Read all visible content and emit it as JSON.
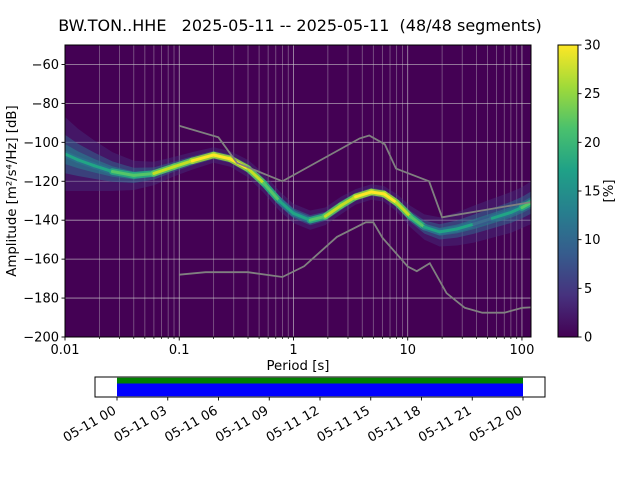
{
  "chart_data": {
    "type": "heatmap",
    "title": "BW.TON..HHE   2025-05-11 -- 2025-05-11  (48/48 segments)",
    "station_id": "BW.TON..HHE",
    "date_range": "2025-05-11 -- 2025-05-11",
    "segments": "48/48 segments",
    "xlabel": "Period [s]",
    "ylabel": "Amplitude [m²/s⁴/Hz] [dB]",
    "x_scale": "log",
    "xlim": [
      0.01,
      120
    ],
    "ylim": [
      -200,
      -50
    ],
    "x_ticks": [
      0.01,
      0.1,
      1,
      10,
      100
    ],
    "x_tick_labels": [
      "0.01",
      "0.1",
      "1",
      "10",
      "100"
    ],
    "y_ticks": [
      -200,
      -180,
      -160,
      -140,
      -120,
      -100,
      -80,
      -60
    ],
    "y_tick_labels": [
      "−200",
      "−180",
      "−160",
      "−140",
      "−120",
      "−100",
      "−80",
      "−60"
    ],
    "grid": true,
    "background_color": "#440154",
    "band_colors": {
      "outer": "#453781",
      "mid": "#31688e",
      "inner": "#277f8e"
    },
    "palette_core": {
      "yellow": "#fde725",
      "yellowgreen": "#c2df23",
      "green": "#54c568",
      "teal": "#21a585",
      "blue": "#3b6d8e"
    },
    "palette_glow": {
      "yellow": "#a0da39",
      "yellowgreen": "#5ec962",
      "green": "#28ae80",
      "teal": "#2c728e",
      "blue": "#38598c"
    },
    "mode_curve": [
      [
        0.01,
        -106,
        38,
        "teal"
      ],
      [
        0.013,
        -109,
        32,
        "teal"
      ],
      [
        0.018,
        -112,
        26,
        "teal"
      ],
      [
        0.026,
        -115,
        20,
        "green"
      ],
      [
        0.04,
        -117,
        15,
        "green"
      ],
      [
        0.06,
        -116,
        12,
        "yellowgreen"
      ],
      [
        0.09,
        -112.5,
        10,
        "yellowgreen"
      ],
      [
        0.13,
        -109.5,
        9,
        "yellow"
      ],
      [
        0.2,
        -106.5,
        8,
        "yellow"
      ],
      [
        0.28,
        -108.5,
        8,
        "yellow"
      ],
      [
        0.4,
        -113.5,
        9,
        "yellowgreen"
      ],
      [
        0.55,
        -121,
        10,
        "green"
      ],
      [
        0.75,
        -130,
        10,
        "teal"
      ],
      [
        1.0,
        -136.5,
        10,
        "teal"
      ],
      [
        1.4,
        -140,
        10,
        "green"
      ],
      [
        1.9,
        -138,
        9,
        "yellowgreen"
      ],
      [
        2.6,
        -132.5,
        9,
        "yellowgreen"
      ],
      [
        3.5,
        -128,
        8,
        "yellow"
      ],
      [
        4.8,
        -125.5,
        8,
        "yellow"
      ],
      [
        6.2,
        -126.5,
        8,
        "yellow"
      ],
      [
        8.0,
        -131,
        9,
        "yellowgreen"
      ],
      [
        10.5,
        -138,
        11,
        "green"
      ],
      [
        14,
        -143.5,
        13,
        "teal"
      ],
      [
        19,
        -146,
        15,
        "teal"
      ],
      [
        27,
        -144.5,
        17,
        "teal"
      ],
      [
        38,
        -142,
        19,
        "blue"
      ],
      [
        55,
        -139,
        20,
        "teal"
      ],
      [
        80,
        -136,
        21,
        "teal"
      ],
      [
        100,
        -133.5,
        21,
        "green"
      ],
      [
        120,
        -131,
        22,
        "green"
      ]
    ],
    "noise_models": {
      "color": "#808080",
      "nlnm": [
        [
          0.1,
          -168.0
        ],
        [
          0.17,
          -166.7
        ],
        [
          0.4,
          -166.7
        ],
        [
          0.8,
          -169.2
        ],
        [
          1.24,
          -163.7
        ],
        [
          2.4,
          -148.6
        ],
        [
          4.3,
          -141.1
        ],
        [
          5.0,
          -141.1
        ],
        [
          6.0,
          -149.0
        ],
        [
          10.0,
          -163.8
        ],
        [
          12.0,
          -166.2
        ],
        [
          15.6,
          -162.1
        ],
        [
          21.9,
          -177.5
        ],
        [
          31.6,
          -185.0
        ],
        [
          45.0,
          -187.5
        ],
        [
          70.0,
          -187.5
        ],
        [
          101.0,
          -185.0
        ],
        [
          120.0,
          -184.8
        ]
      ],
      "nhnm": [
        [
          0.1,
          -91.5
        ],
        [
          0.22,
          -97.4
        ],
        [
          0.32,
          -110.5
        ],
        [
          0.8,
          -120.0
        ],
        [
          3.8,
          -98.0
        ],
        [
          4.6,
          -96.5
        ],
        [
          6.3,
          -101.0
        ],
        [
          7.9,
          -113.5
        ],
        [
          15.4,
          -120.0
        ],
        [
          20.0,
          -138.5
        ],
        [
          120.0,
          -130.7
        ]
      ]
    },
    "colorbar": {
      "label": "[%]",
      "min": 0,
      "max": 30,
      "ticks": [
        0,
        5,
        10,
        15,
        20,
        25,
        30
      ],
      "tick_labels": [
        "0",
        "5",
        "10",
        "15",
        "20",
        "25",
        "30"
      ],
      "colormap": "viridis",
      "gradient": [
        "#440154",
        "#46327e",
        "#365c8d",
        "#277f8e",
        "#1fa187",
        "#4ac16d",
        "#a0da39",
        "#fde725"
      ]
    }
  },
  "timeline": {
    "tick_labels": [
      "05-11 00",
      "05-11 03",
      "05-11 06",
      "05-11 09",
      "05-11 12",
      "05-11 15",
      "05-11 18",
      "05-11 21",
      "05-12 00"
    ],
    "bands": [
      {
        "name": "processed-segments",
        "color": "#008000"
      },
      {
        "name": "data-coverage",
        "color": "#0000ff"
      }
    ]
  }
}
